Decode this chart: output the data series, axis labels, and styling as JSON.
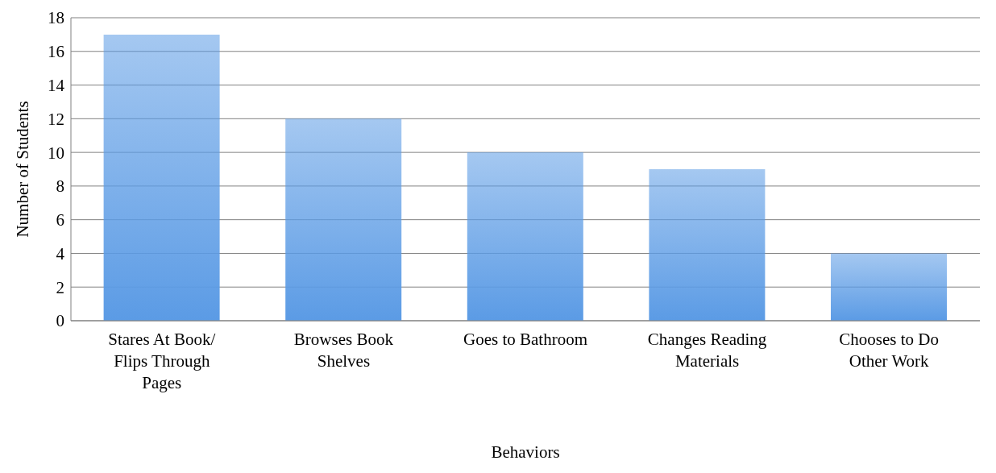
{
  "chart_data": {
    "type": "bar",
    "categories": [
      "Stares At Book/ Flips Through Pages",
      "Browses Book Shelves",
      "Goes to Bathroom",
      "Changes Reading Materials",
      "Chooses to Do Other Work"
    ],
    "values": [
      17,
      12,
      10,
      9,
      4
    ],
    "color": "#5b9be5",
    "xlabel": "Behaviors",
    "ylabel": "Number of Students",
    "ylim": [
      0,
      18
    ],
    "yticks": [
      0,
      2,
      4,
      6,
      8,
      10,
      12,
      14,
      16,
      18
    ],
    "grid": "y"
  }
}
